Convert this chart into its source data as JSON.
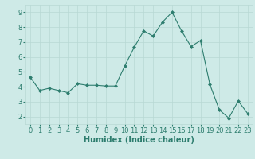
{
  "x": [
    0,
    1,
    2,
    3,
    4,
    5,
    6,
    7,
    8,
    9,
    10,
    11,
    12,
    13,
    14,
    15,
    16,
    17,
    18,
    19,
    20,
    21,
    22,
    23
  ],
  "y": [
    4.65,
    3.75,
    3.9,
    3.75,
    3.6,
    4.2,
    4.1,
    4.1,
    4.05,
    4.05,
    5.4,
    6.65,
    7.75,
    7.4,
    8.35,
    9.0,
    7.75,
    6.7,
    7.1,
    4.15,
    2.45,
    1.9,
    3.05,
    2.2
  ],
  "line_color": "#2d7d6e",
  "marker": "D",
  "marker_size": 2.0,
  "bg_color": "#ceeae7",
  "grid_color": "#b8d8d4",
  "xlabel": "Humidex (Indice chaleur)",
  "ylim": [
    1.5,
    9.5
  ],
  "xlim": [
    -0.5,
    23.5
  ],
  "yticks": [
    2,
    3,
    4,
    5,
    6,
    7,
    8,
    9
  ],
  "xticks": [
    0,
    1,
    2,
    3,
    4,
    5,
    6,
    7,
    8,
    9,
    10,
    11,
    12,
    13,
    14,
    15,
    16,
    17,
    18,
    19,
    20,
    21,
    22,
    23
  ],
  "tick_color": "#2d7d6e",
  "label_color": "#2d7d6e",
  "font_size_xlabel": 7.0,
  "font_size_ticks": 6.0
}
